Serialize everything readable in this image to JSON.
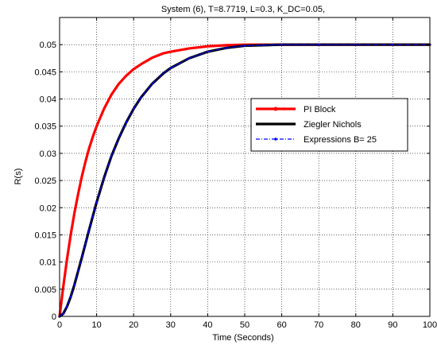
{
  "chart_data": {
    "type": "line",
    "title": "System (6), T=8.7719, L=0.3, K_DC=0.05,",
    "xlabel": "Time (Seconds)",
    "ylabel": "R(s)",
    "xlim": [
      0,
      100
    ],
    "ylim": [
      0,
      0.055
    ],
    "x_ticks": [
      0,
      10,
      20,
      30,
      40,
      50,
      60,
      70,
      80,
      90,
      100
    ],
    "y_ticks": [
      0,
      0.005,
      0.01,
      0.015,
      0.02,
      0.025,
      0.03,
      0.035,
      0.04,
      0.045,
      0.05
    ],
    "x_tick_labels": [
      "0",
      "10",
      "20",
      "30",
      "40",
      "50",
      "60",
      "70",
      "80",
      "90",
      "100"
    ],
    "y_tick_labels": [
      "0",
      "0.005",
      "0.01",
      "0.015",
      "0.02",
      "0.025",
      "0.03",
      "0.035",
      "0.04",
      "0.045",
      "0.05"
    ],
    "grid": "dotted",
    "legend_position": "right-middle",
    "series": [
      {
        "name": "PI  Block",
        "color": "#ff0000",
        "style": "solid-with-dots",
        "x": [
          0,
          1,
          2,
          3,
          4,
          5,
          6,
          7,
          8,
          9,
          10,
          12,
          14,
          16,
          18,
          20,
          22,
          25,
          28,
          30,
          35,
          40,
          45,
          50,
          55,
          60,
          70,
          80,
          90,
          100
        ],
        "y": [
          0,
          0.0055,
          0.0105,
          0.015,
          0.019,
          0.0225,
          0.0257,
          0.0285,
          0.031,
          0.0331,
          0.035,
          0.0382,
          0.0408,
          0.0428,
          0.0443,
          0.0455,
          0.0464,
          0.0476,
          0.0484,
          0.0487,
          0.0493,
          0.0497,
          0.0499,
          0.05,
          0.05,
          0.05,
          0.05,
          0.05,
          0.05,
          0.05
        ]
      },
      {
        "name": "Ziegler Nichols",
        "color": "#000000",
        "style": "solid",
        "x": [
          0,
          1,
          2,
          3,
          4,
          5,
          6,
          7,
          8,
          9,
          10,
          12,
          14,
          16,
          18,
          20,
          22,
          25,
          28,
          30,
          35,
          40,
          45,
          50,
          55,
          60,
          70,
          80,
          90,
          100
        ],
        "y": [
          0,
          0.0005,
          0.0018,
          0.0036,
          0.0058,
          0.0083,
          0.0108,
          0.0134,
          0.016,
          0.0185,
          0.021,
          0.0255,
          0.0295,
          0.0328,
          0.0357,
          0.0382,
          0.0403,
          0.0428,
          0.0447,
          0.0457,
          0.0475,
          0.0487,
          0.0494,
          0.0498,
          0.0499,
          0.05,
          0.05,
          0.05,
          0.05,
          0.05
        ]
      },
      {
        "name": "Expressions B= 25",
        "color": "#0000ff",
        "style": "dash-dot-with-dots",
        "x": [
          0,
          1,
          2,
          3,
          4,
          5,
          6,
          7,
          8,
          9,
          10,
          12,
          14,
          16,
          18,
          20,
          22,
          25,
          28,
          30,
          35,
          40,
          45,
          50,
          55,
          60,
          70,
          80,
          90,
          100
        ],
        "y": [
          0,
          0.0005,
          0.0018,
          0.0036,
          0.0058,
          0.0083,
          0.0108,
          0.0134,
          0.016,
          0.0185,
          0.021,
          0.0255,
          0.0295,
          0.0328,
          0.0357,
          0.0382,
          0.0403,
          0.0428,
          0.0447,
          0.0457,
          0.0475,
          0.0487,
          0.0494,
          0.0498,
          0.0499,
          0.05,
          0.05,
          0.05,
          0.05,
          0.05
        ]
      }
    ]
  }
}
